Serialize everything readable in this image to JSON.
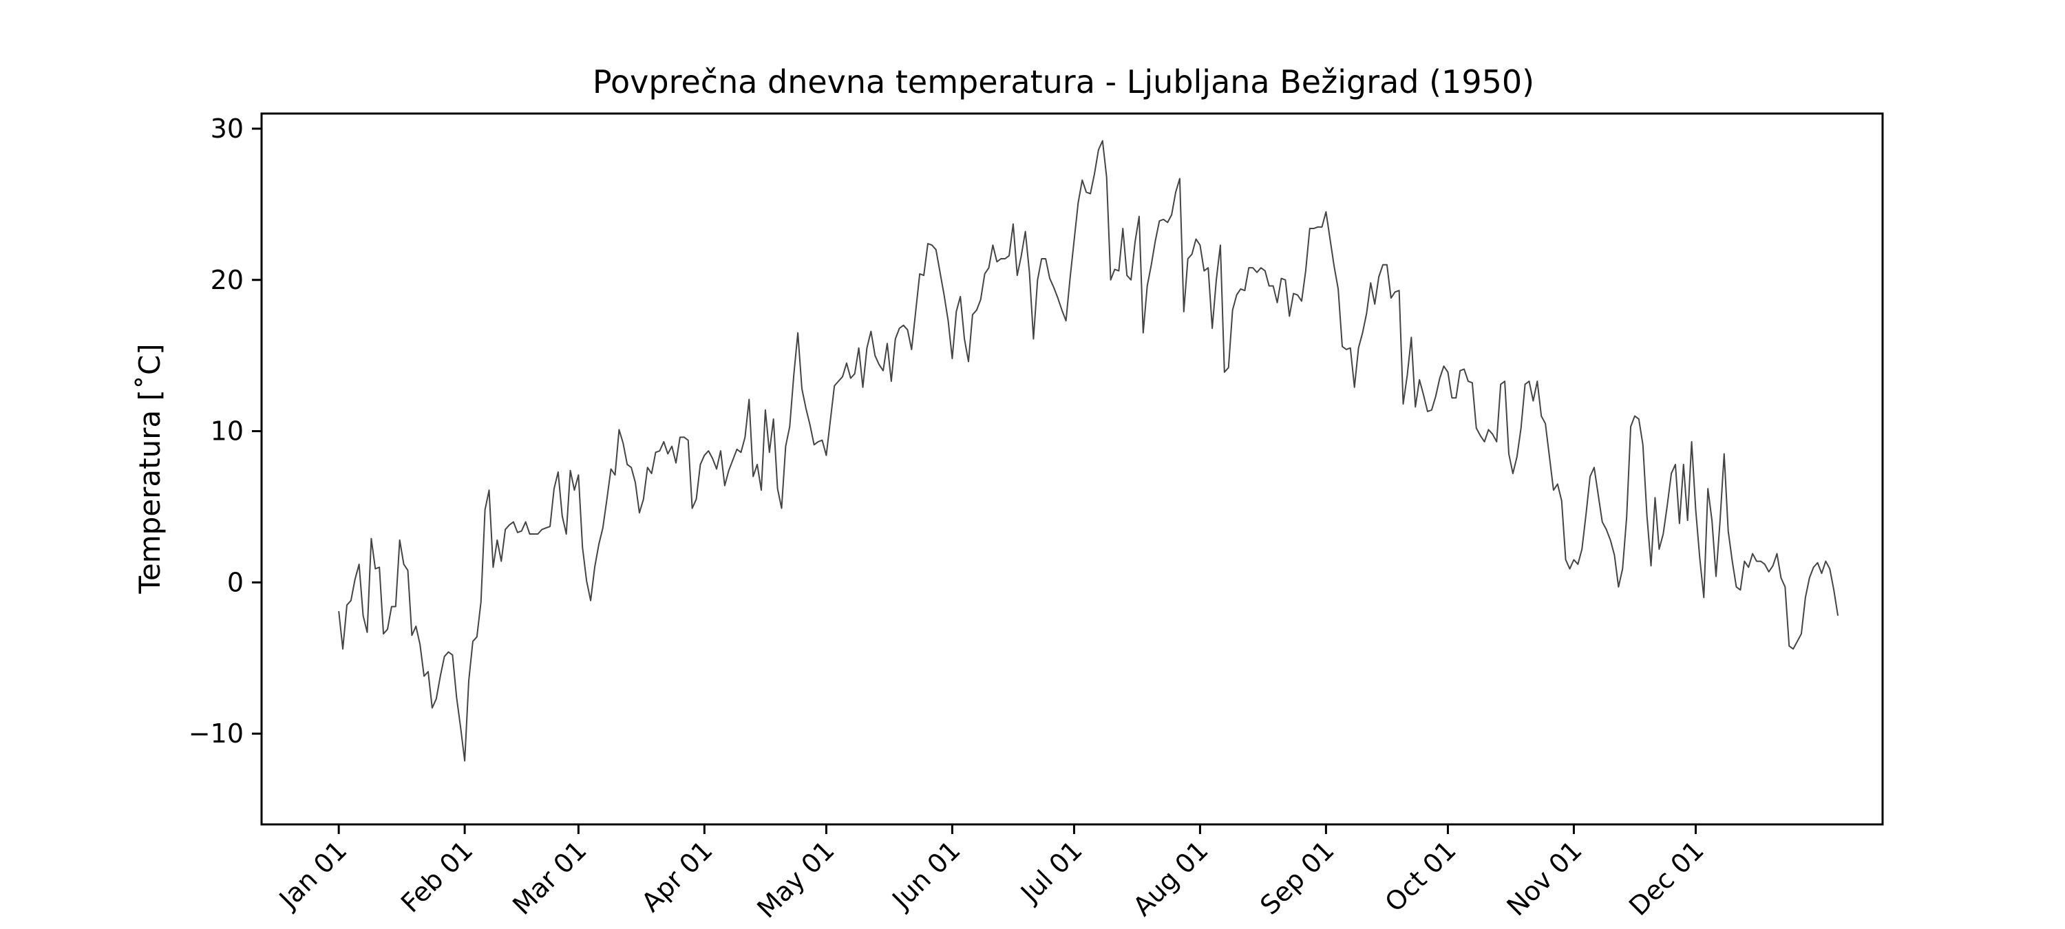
{
  "chart_data": {
    "type": "line",
    "title": "Povprečna dnevna temperatura - Ljubljana Bežigrad (1950)",
    "xlabel": "",
    "ylabel": "Temperatura [˚C]",
    "ylim": [
      -16,
      31
    ],
    "xlim": [
      "1949-12-13",
      "1951-01-16"
    ],
    "yticks": [
      -10,
      0,
      10,
      20,
      30
    ],
    "ytick_labels": [
      "−10",
      "0",
      "10",
      "20",
      "30"
    ],
    "xticks": [
      {
        "date": "1950-01-01",
        "label": "Jan 01"
      },
      {
        "date": "1950-02-01",
        "label": "Feb 01"
      },
      {
        "date": "1950-03-01",
        "label": "Mar 01"
      },
      {
        "date": "1950-04-01",
        "label": "Apr 01"
      },
      {
        "date": "1950-05-01",
        "label": "May 01"
      },
      {
        "date": "1950-06-01",
        "label": "Jun 01"
      },
      {
        "date": "1950-07-01",
        "label": "Jul 01"
      },
      {
        "date": "1950-08-01",
        "label": "Aug 01"
      },
      {
        "date": "1950-09-01",
        "label": "Sep 01"
      },
      {
        "date": "1950-10-01",
        "label": "Oct 01"
      },
      {
        "date": "1950-11-01",
        "label": "Nov 01"
      },
      {
        "date": "1950-12-01",
        "label": "Dec 01"
      }
    ],
    "grid": false,
    "line_color": "#444444",
    "series": [
      {
        "x_start": "1950-01-01",
        "x_step_days": 1,
        "values": [
          -1.9,
          -4.4,
          -1.5,
          -1.2,
          0.2,
          1.2,
          -2.2,
          -3.3,
          2.9,
          0.9,
          1.0,
          -3.4,
          -3.1,
          -1.6,
          -1.6,
          2.8,
          1.2,
          0.8,
          -3.5,
          -2.9,
          -4.1,
          -6.2,
          -5.9,
          -8.3,
          -7.7,
          -6.2,
          -4.9,
          -4.6,
          -4.8,
          -7.6,
          -9.6,
          -11.8,
          -6.5,
          -3.9,
          -3.6,
          -1.3,
          4.8,
          6.1,
          1.0,
          2.8,
          1.4,
          3.5,
          3.8,
          4.0,
          3.3,
          3.4,
          4.0,
          3.2,
          3.2,
          3.2,
          3.5,
          3.6,
          3.7,
          6.2,
          7.3,
          4.4,
          3.2,
          7.4,
          6.1,
          7.1,
          2.3,
          0.1,
          -1.2,
          1.0,
          2.5,
          3.6,
          5.5,
          7.5,
          7.1,
          10.1,
          9.2,
          7.8,
          7.6,
          6.6,
          4.6,
          5.5,
          7.6,
          7.2,
          8.6,
          8.7,
          9.3,
          8.5,
          9.0,
          7.9,
          9.6,
          9.6,
          9.4,
          4.9,
          5.5,
          7.8,
          8.4,
          8.7,
          8.2,
          7.5,
          8.7,
          6.4,
          7.4,
          8.1,
          8.8,
          8.6,
          9.6,
          12.1,
          7.0,
          7.8,
          6.1,
          11.4,
          8.6,
          10.8,
          6.2,
          4.9,
          9.0,
          10.3,
          13.7,
          16.5,
          12.8,
          11.5,
          10.4,
          9.1,
          9.3,
          9.4,
          8.4,
          10.7,
          13.0,
          13.3,
          13.6,
          14.5,
          13.5,
          13.8,
          15.5,
          12.9,
          15.5,
          16.6,
          15.0,
          14.4,
          14.0,
          15.8,
          13.3,
          16.1,
          16.8,
          17.0,
          16.7,
          15.4,
          17.9,
          20.4,
          20.3,
          22.4,
          22.3,
          22.0,
          20.5,
          19.0,
          17.3,
          14.8,
          17.9,
          18.9,
          16.1,
          14.6,
          17.7,
          18.0,
          18.7,
          20.4,
          20.8,
          22.3,
          21.2,
          21.4,
          21.4,
          21.6,
          23.7,
          20.3,
          21.6,
          23.2,
          20.5,
          16.1,
          20.0,
          21.4,
          21.4,
          20.1,
          19.5,
          18.8,
          18.0,
          17.3,
          20.1,
          22.6,
          25.1,
          26.6,
          25.8,
          25.7,
          27.0,
          28.6,
          29.2,
          26.8,
          20.0,
          20.7,
          20.6,
          23.4,
          20.3,
          20.0,
          22.5,
          24.2,
          16.5,
          19.6,
          21.0,
          22.6,
          23.9,
          24.0,
          23.8,
          24.3,
          25.8,
          26.7,
          17.9,
          21.4,
          21.7,
          22.7,
          22.3,
          20.6,
          20.8,
          16.8,
          20.0,
          22.3,
          13.9,
          14.2,
          18.0,
          19.0,
          19.4,
          19.3,
          20.8,
          20.8,
          20.5,
          20.8,
          20.6,
          19.6,
          19.6,
          18.5,
          20.1,
          20.0,
          17.6,
          19.1,
          19.0,
          18.6,
          20.6,
          23.4,
          23.4,
          23.5,
          23.5,
          24.5,
          22.7,
          20.9,
          19.4,
          15.6,
          15.4,
          15.5,
          12.9,
          15.5,
          16.5,
          17.8,
          19.8,
          18.4,
          20.2,
          21.0,
          21.0,
          18.8,
          19.2,
          19.3,
          11.8,
          13.7,
          16.2,
          11.6,
          13.4,
          12.4,
          11.3,
          11.4,
          12.3,
          13.5,
          14.3,
          13.9,
          12.2,
          12.2,
          14.0,
          14.1,
          13.3,
          13.2,
          10.2,
          9.7,
          9.3,
          10.1,
          9.8,
          9.3,
          13.1,
          13.3,
          8.5,
          7.2,
          8.3,
          10.2,
          13.1,
          13.3,
          12.0,
          13.3,
          11.0,
          10.5,
          8.3,
          6.1,
          6.5,
          5.4,
          1.5,
          0.9,
          1.5,
          1.2,
          2.2,
          4.5,
          7.0,
          7.6,
          5.8,
          4.0,
          3.5,
          2.8,
          1.8,
          -0.3,
          0.9,
          4.3,
          10.3,
          11.0,
          10.8,
          9.1,
          4.4,
          1.1,
          5.6,
          2.2,
          3.2,
          5.1,
          7.2,
          7.8,
          3.9,
          7.8,
          4.1,
          9.3,
          4.8,
          1.6,
          -1.0,
          6.2,
          4.1,
          0.4,
          4.1,
          8.5,
          3.4,
          1.4,
          -0.3,
          -0.5,
          1.4,
          1.0,
          1.9,
          1.4,
          1.4,
          1.2,
          0.7,
          1.1,
          1.9,
          0.3,
          -0.3,
          -4.2,
          -4.4,
          -3.9,
          -3.4,
          -1.0,
          0.3,
          1.0,
          1.3,
          0.6,
          1.4,
          0.9,
          -0.5,
          -2.2
        ]
      }
    ]
  }
}
